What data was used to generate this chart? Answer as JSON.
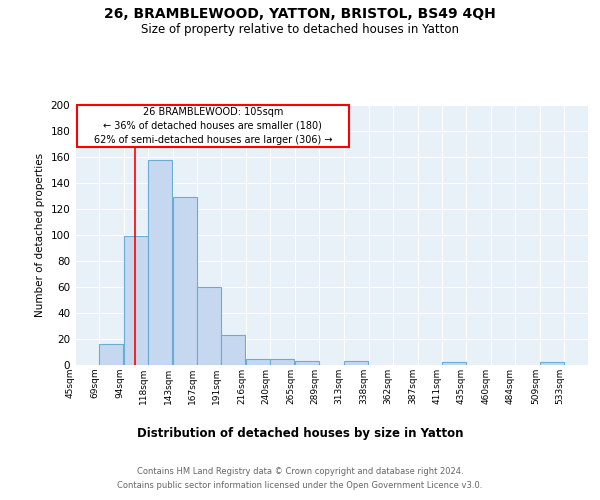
{
  "title": "26, BRAMBLEWOOD, YATTON, BRISTOL, BS49 4QH",
  "subtitle": "Size of property relative to detached houses in Yatton",
  "xlabel": "Distribution of detached houses by size in Yatton",
  "ylabel": "Number of detached properties",
  "bins": [
    45,
    69,
    94,
    118,
    143,
    167,
    191,
    216,
    240,
    265,
    289,
    313,
    338,
    362,
    387,
    411,
    435,
    460,
    484,
    509,
    533
  ],
  "counts": [
    0,
    16,
    99,
    158,
    129,
    60,
    23,
    5,
    5,
    3,
    0,
    3,
    0,
    0,
    0,
    2,
    0,
    0,
    0,
    2,
    0
  ],
  "bar_color": "#c5d8f0",
  "bar_edge_color": "#6aacd8",
  "red_line_x": 105,
  "ylim": [
    0,
    200
  ],
  "yticks": [
    0,
    20,
    40,
    60,
    80,
    100,
    120,
    140,
    160,
    180,
    200
  ],
  "bg_color": "#e8f0f8",
  "ann_line1": "26 BRAMBLEWOOD: 105sqm",
  "ann_line2": "← 36% of detached houses are smaller (180)",
  "ann_line3": "62% of semi-detached houses are larger (306) →",
  "footer_line1": "Contains HM Land Registry data © Crown copyright and database right 2024.",
  "footer_line2": "Contains public sector information licensed under the Open Government Licence v3.0."
}
